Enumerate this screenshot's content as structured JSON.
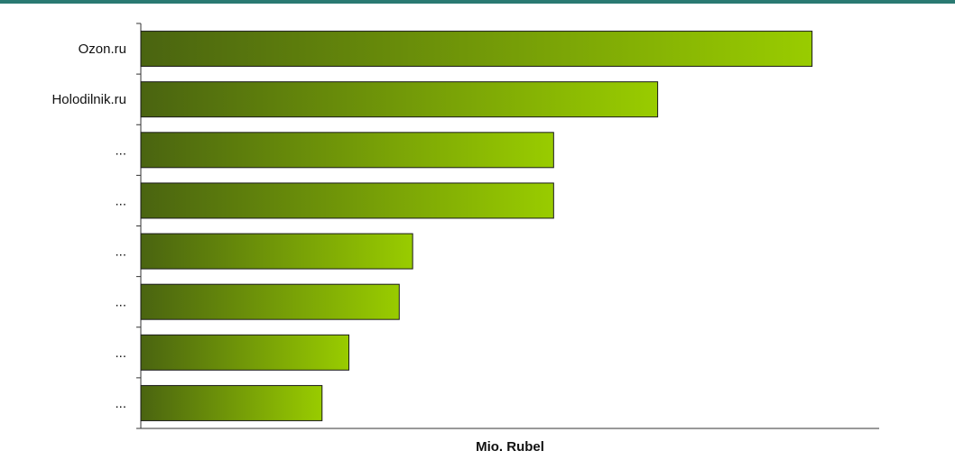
{
  "colors": {
    "header_rule": "#2a7a72",
    "bar_gradient_start": "#4a6410",
    "bar_gradient_end": "#99cc00"
  },
  "chart_data": {
    "type": "bar",
    "orientation": "horizontal",
    "categories": [
      "Ozon.ru",
      "Holodilnik.ru",
      "...",
      "...",
      "...",
      "...",
      "...",
      "..."
    ],
    "values": [
      100,
      77,
      61.5,
      61.5,
      40.5,
      38.5,
      31,
      27
    ],
    "title": "",
    "xlabel": "Mio. Rubel",
    "ylabel": "",
    "xlim": [
      0,
      110
    ],
    "grid": false,
    "legend": "none"
  }
}
